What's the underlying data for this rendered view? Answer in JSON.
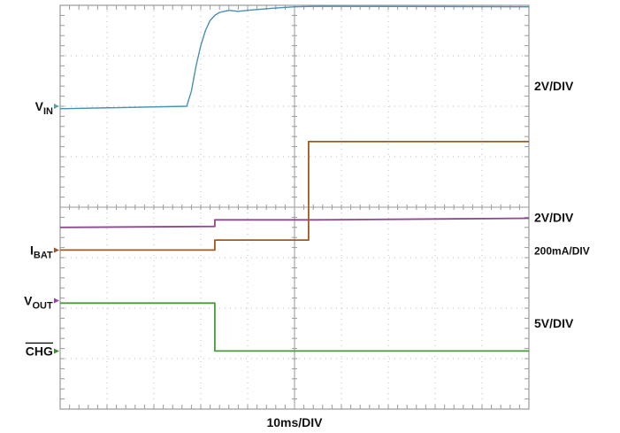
{
  "chart_data": {
    "type": "line",
    "timebase": "10ms/DIV",
    "x_divisions": 10,
    "y_divisions": 8,
    "x_range_ms": [
      0,
      100
    ],
    "grid": true,
    "left_labels": [
      {
        "id": "vin",
        "main": "V",
        "sub": "IN",
        "overline": false,
        "div_level": 2.0,
        "marker_color": "#5f9ea0"
      },
      {
        "id": "ibat",
        "main": "I",
        "sub": "BAT",
        "overline": false,
        "div_level": 4.85,
        "marker_color": "#a0522d"
      },
      {
        "id": "vout",
        "main": "V",
        "sub": "OUT",
        "overline": false,
        "div_level": 5.85,
        "marker_color": "#8e44ad"
      },
      {
        "id": "chg",
        "main": "CHG",
        "sub": "",
        "overline": true,
        "div_level": 6.85,
        "marker_color": "#3c8d2f"
      }
    ],
    "right_labels": [
      {
        "text": "2V/DIV",
        "div_level": 1.6,
        "size": "large"
      },
      {
        "text": "2V/DIV",
        "div_level": 4.2,
        "size": "large"
      },
      {
        "text": "200mA/DIV",
        "div_level": 4.85,
        "size": "small"
      },
      {
        "text": "5V/DIV",
        "div_level": 6.3,
        "size": "large"
      }
    ],
    "series": [
      {
        "id": "vin",
        "color": "#4a8fb5",
        "points": [
          [
            0,
            2.05
          ],
          [
            27,
            2.0
          ],
          [
            28,
            1.7
          ],
          [
            29,
            1.2
          ],
          [
            30,
            0.8
          ],
          [
            31,
            0.5
          ],
          [
            32,
            0.3
          ],
          [
            33,
            0.2
          ],
          [
            34,
            0.14
          ],
          [
            36,
            0.1
          ],
          [
            38,
            0.12
          ],
          [
            40,
            0.1
          ],
          [
            45,
            0.06
          ],
          [
            50,
            0.03
          ],
          [
            55,
            0.02
          ],
          [
            100,
            0.03
          ]
        ]
      },
      {
        "id": "vout",
        "color": "#8e4a8e",
        "points": [
          [
            0,
            4.4
          ],
          [
            33,
            4.38
          ],
          [
            33,
            4.25
          ],
          [
            55,
            4.25
          ],
          [
            100,
            4.22
          ]
        ]
      },
      {
        "id": "ibat",
        "color": "#a05a1e",
        "points": [
          [
            0,
            4.85
          ],
          [
            33,
            4.85
          ],
          [
            33,
            4.65
          ],
          [
            53,
            4.65
          ],
          [
            53,
            2.7
          ],
          [
            100,
            2.7
          ]
        ]
      },
      {
        "id": "chg",
        "color": "#4a9a3a",
        "points": [
          [
            0,
            5.9
          ],
          [
            33,
            5.9
          ],
          [
            33,
            6.85
          ],
          [
            100,
            6.85
          ]
        ]
      }
    ]
  }
}
